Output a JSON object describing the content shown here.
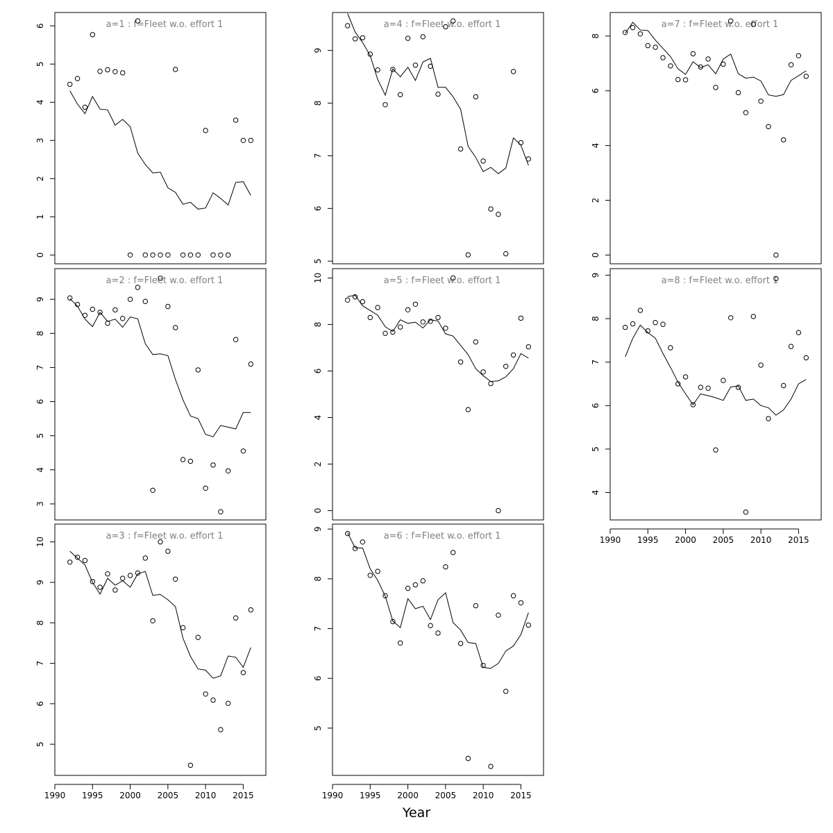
{
  "xlabel": "Year",
  "chart_data": [
    {
      "type": "line+scatter",
      "title": "a=1  :  f=Fleet w.o. effort 1",
      "x": [
        1992,
        1993,
        1994,
        1995,
        1996,
        1997,
        1998,
        1999,
        2000,
        2001,
        2002,
        2003,
        2004,
        2005,
        2006,
        2007,
        2008,
        2009,
        2010,
        2011,
        2012,
        2013,
        2014,
        2015,
        2016
      ],
      "fitted": [
        4.3,
        3.95,
        3.7,
        4.15,
        3.82,
        3.8,
        3.4,
        3.55,
        3.36,
        2.67,
        2.37,
        2.15,
        2.17,
        1.76,
        1.64,
        1.33,
        1.38,
        1.2,
        1.23,
        1.63,
        1.48,
        1.31,
        1.9,
        1.92,
        1.56
      ],
      "observed": [
        4.47,
        4.62,
        3.87,
        5.77,
        4.81,
        4.85,
        4.8,
        4.77,
        0,
        6.13,
        0,
        0,
        0,
        0,
        4.86,
        0,
        0,
        0,
        3.26,
        0,
        0,
        0,
        3.53,
        3.0,
        3.0
      ],
      "xlim": [
        1990,
        2018
      ],
      "ylim": [
        -0.23,
        6.35
      ],
      "yticks": [
        0,
        1,
        2,
        3,
        4,
        5,
        6
      ],
      "xticks": [
        1990,
        1995,
        2000,
        2005,
        2010,
        2015
      ]
    },
    {
      "type": "line+scatter",
      "title": "a=2  :  f=Fleet w.o. effort 1",
      "x": [
        1992,
        1993,
        1994,
        1995,
        1996,
        1997,
        1998,
        1999,
        2000,
        2001,
        2002,
        2003,
        2004,
        2005,
        2006,
        2007,
        2008,
        2009,
        2010,
        2011,
        2012,
        2013,
        2014,
        2015,
        2016
      ],
      "fitted": [
        9.02,
        8.8,
        8.42,
        8.2,
        8.62,
        8.35,
        8.42,
        8.18,
        8.48,
        8.43,
        7.7,
        7.38,
        7.4,
        7.35,
        6.65,
        6.05,
        5.58,
        5.5,
        5.04,
        4.97,
        5.3,
        5.25,
        5.2,
        5.68,
        5.68
      ],
      "observed": [
        9.04,
        8.85,
        8.53,
        8.71,
        8.62,
        8.3,
        8.69,
        8.44,
        9.0,
        9.35,
        8.94,
        3.4,
        9.62,
        8.79,
        8.17,
        4.3,
        4.25,
        6.93,
        3.46,
        4.14,
        2.77,
        3.97,
        7.82,
        4.55,
        7.1
      ],
      "xlim": [
        1990,
        2018
      ],
      "ylim": [
        2.53,
        9.9
      ],
      "yticks": [
        3,
        4,
        5,
        6,
        7,
        8,
        9
      ],
      "xticks": [
        1990,
        1995,
        2000,
        2005,
        2010,
        2015
      ]
    },
    {
      "type": "line+scatter",
      "title": "a=3  :  f=Fleet w.o. effort 1",
      "x": [
        1992,
        1993,
        1994,
        1995,
        1996,
        1997,
        1998,
        1999,
        2000,
        2001,
        2002,
        2003,
        2004,
        2005,
        2006,
        2007,
        2008,
        2009,
        2010,
        2011,
        2012,
        2013,
        2014,
        2015,
        2016
      ],
      "fitted": [
        9.77,
        9.6,
        9.43,
        9.0,
        8.71,
        9.1,
        8.93,
        9.04,
        8.88,
        9.21,
        9.27,
        8.68,
        8.7,
        8.57,
        8.4,
        7.62,
        7.17,
        6.86,
        6.83,
        6.63,
        6.69,
        7.18,
        7.15,
        6.9,
        7.39
      ],
      "observed": [
        9.5,
        9.62,
        9.54,
        9.02,
        8.88,
        9.21,
        8.81,
        9.1,
        9.17,
        9.23,
        9.6,
        8.05,
        10.0,
        9.77,
        9.08,
        7.88,
        4.48,
        7.64,
        6.24,
        6.09,
        5.36,
        6.01,
        8.12,
        6.77,
        8.32
      ],
      "xlim": [
        1990,
        2018
      ],
      "ylim": [
        4.23,
        10.44
      ],
      "yticks": [
        5,
        6,
        7,
        8,
        9,
        10
      ],
      "xticks": [
        1990,
        1995,
        2000,
        2005,
        2010,
        2015
      ]
    },
    {
      "type": "line+scatter",
      "title": "a=4  :  f=Fleet w.o. effort 1",
      "x": [
        1992,
        1993,
        1994,
        1995,
        1996,
        1997,
        1998,
        1999,
        2000,
        2001,
        2002,
        2003,
        2004,
        2005,
        2006,
        2007,
        2008,
        2009,
        2010,
        2011,
        2012,
        2013,
        2014,
        2015,
        2016
      ],
      "fitted": [
        9.7,
        9.35,
        9.15,
        8.9,
        8.45,
        8.15,
        8.65,
        8.5,
        8.68,
        8.43,
        8.78,
        8.85,
        8.3,
        8.3,
        8.12,
        7.88,
        7.18,
        6.97,
        6.7,
        6.78,
        6.66,
        6.77,
        7.34,
        7.2,
        6.82
      ],
      "observed": [
        9.47,
        9.22,
        9.24,
        8.93,
        8.63,
        7.97,
        8.64,
        8.16,
        9.23,
        8.72,
        9.26,
        8.7,
        8.17,
        9.45,
        9.56,
        7.13,
        5.12,
        8.12,
        6.9,
        5.99,
        5.89,
        5.14,
        8.6,
        7.25,
        6.94
      ],
      "xlim": [
        1990,
        2018
      ],
      "ylim": [
        4.95,
        9.72
      ],
      "yticks": [
        5,
        6,
        7,
        8,
        9
      ],
      "xticks": [
        1990,
        1995,
        2000,
        2005,
        2010,
        2015
      ]
    },
    {
      "type": "line+scatter",
      "title": "a=5  :  f=Fleet w.o. effort 1",
      "x": [
        1992,
        1993,
        1994,
        1995,
        1996,
        1997,
        1998,
        1999,
        2000,
        2001,
        2002,
        2003,
        2004,
        2005,
        2006,
        2007,
        2008,
        2009,
        2010,
        2011,
        2012,
        2013,
        2014,
        2015,
        2016
      ],
      "fitted": [
        9.2,
        9.25,
        8.8,
        8.6,
        8.4,
        7.9,
        7.7,
        8.2,
        8.05,
        8.1,
        7.85,
        8.2,
        8.15,
        7.6,
        7.5,
        7.1,
        6.7,
        6.1,
        5.8,
        5.55,
        5.58,
        5.75,
        6.1,
        6.75,
        6.55
      ],
      "observed": [
        9.05,
        9.19,
        8.98,
        8.3,
        8.73,
        7.62,
        7.67,
        7.89,
        8.63,
        8.87,
        8.11,
        8.14,
        8.3,
        7.84,
        10.0,
        6.39,
        4.34,
        7.25,
        5.96,
        5.46,
        0,
        6.2,
        6.69,
        8.27,
        7.04
      ],
      "xlim": [
        1990,
        2018
      ],
      "ylim": [
        -0.4,
        10.4
      ],
      "yticks": [
        0,
        2,
        4,
        6,
        8,
        10
      ],
      "xticks": [
        1990,
        1995,
        2000,
        2005,
        2010,
        2015
      ]
    },
    {
      "type": "line+scatter",
      "title": "a=6  :  f=Fleet w.o. effort 1",
      "x": [
        1992,
        1993,
        1994,
        1995,
        1996,
        1997,
        1998,
        1999,
        2000,
        2001,
        2002,
        2003,
        2004,
        2005,
        2006,
        2007,
        2008,
        2009,
        2010,
        2011,
        2012,
        2013,
        2014,
        2015,
        2016
      ],
      "fitted": [
        8.93,
        8.62,
        8.62,
        8.2,
        7.97,
        7.65,
        7.15,
        7.02,
        7.6,
        7.4,
        7.45,
        7.18,
        7.58,
        7.72,
        7.12,
        6.97,
        6.72,
        6.7,
        6.22,
        6.2,
        6.3,
        6.55,
        6.65,
        6.88,
        7.32
      ],
      "observed": [
        8.91,
        8.61,
        8.74,
        8.07,
        8.15,
        7.66,
        7.14,
        6.71,
        7.81,
        7.88,
        7.96,
        7.06,
        6.91,
        8.24,
        8.53,
        6.7,
        4.39,
        7.46,
        6.26,
        4.23,
        7.27,
        5.74,
        7.66,
        7.52,
        7.07
      ],
      "xlim": [
        1990,
        2018
      ],
      "ylim": [
        4.05,
        9.1
      ],
      "yticks": [
        5,
        6,
        7,
        8,
        9
      ],
      "xticks": [
        1990,
        1995,
        2000,
        2005,
        2010,
        2015
      ]
    },
    {
      "type": "line+scatter",
      "title": "a=7  :  f=Fleet w.o. effort 1",
      "x": [
        1992,
        1993,
        1994,
        1995,
        1996,
        1997,
        1998,
        1999,
        2000,
        2001,
        2002,
        2003,
        2004,
        2005,
        2006,
        2007,
        2008,
        2009,
        2010,
        2011,
        2012,
        2013,
        2014,
        2015,
        2016
      ],
      "fitted": [
        8.1,
        8.5,
        8.22,
        8.2,
        7.85,
        7.55,
        7.25,
        6.8,
        6.6,
        7.06,
        6.85,
        6.95,
        6.62,
        7.16,
        7.34,
        6.62,
        6.46,
        6.5,
        6.36,
        5.85,
        5.8,
        5.86,
        6.38,
        6.55,
        6.73
      ],
      "observed": [
        8.13,
        8.31,
        8.08,
        7.65,
        7.59,
        7.21,
        6.91,
        6.41,
        6.4,
        7.35,
        6.87,
        7.16,
        6.12,
        6.97,
        8.55,
        5.93,
        5.2,
        8.43,
        5.62,
        4.69,
        0,
        4.21,
        6.95,
        7.28,
        6.53
      ],
      "xlim": [
        1990,
        2018
      ],
      "ylim": [
        -0.32,
        8.86
      ],
      "yticks": [
        0,
        2,
        4,
        6,
        8
      ],
      "xticks": [
        1990,
        1995,
        2000,
        2005,
        2010,
        2015
      ]
    },
    {
      "type": "line+scatter",
      "title": "a=8  :  f=Fleet w.o. effort 1",
      "x": [
        1992,
        1993,
        1994,
        1995,
        1996,
        1997,
        1998,
        1999,
        2000,
        2001,
        2002,
        2003,
        2004,
        2005,
        2006,
        2007,
        2008,
        2009,
        2010,
        2011,
        2012,
        2013,
        2014,
        2015,
        2016
      ],
      "fitted": [
        7.12,
        7.55,
        7.85,
        7.68,
        7.55,
        7.2,
        6.88,
        6.54,
        6.27,
        6.02,
        6.27,
        6.23,
        6.18,
        6.12,
        6.43,
        6.45,
        6.12,
        6.15,
        6.0,
        5.95,
        5.78,
        5.9,
        6.15,
        6.5,
        6.6
      ],
      "observed": [
        7.8,
        7.88,
        8.19,
        7.72,
        7.91,
        7.87,
        7.33,
        6.5,
        6.66,
        6.02,
        6.42,
        6.4,
        4.98,
        6.58,
        8.02,
        6.42,
        3.55,
        8.05,
        6.93,
        5.7,
        8.92,
        6.46,
        7.36,
        7.68,
        7.1
      ],
      "xlim": [
        1990,
        2018
      ],
      "ylim": [
        3.37,
        9.15
      ],
      "yticks": [
        4,
        5,
        6,
        7,
        8,
        9
      ],
      "xticks": [
        1990,
        1995,
        2000,
        2005,
        2010,
        2015
      ]
    }
  ]
}
